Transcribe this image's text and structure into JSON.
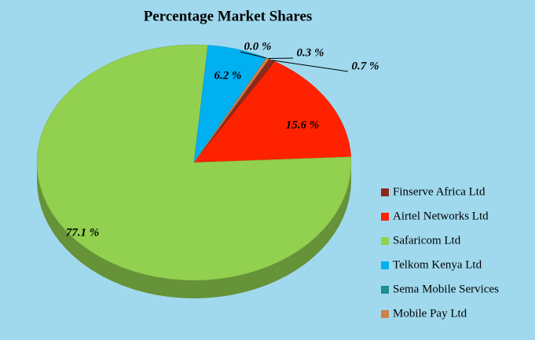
{
  "chart_data": {
    "type": "pie",
    "title": "Percentage Market Shares",
    "categories": [
      "Finserve Africa Ltd",
      "Airtel Networks Ltd",
      "Safaricom Ltd",
      "Telkom Kenya Ltd",
      "Sema Mobile Services",
      "Mobile Pay Ltd"
    ],
    "values": [
      0.7,
      15.6,
      77.1,
      6.2,
      0.0,
      0.3
    ],
    "value_labels": [
      "0.7 %",
      "15.6 %",
      "77.1 %",
      "6.2 %",
      "0.0 %",
      "0.3 %"
    ],
    "colors": [
      "#8b2a1a",
      "#ff2200",
      "#92d050",
      "#00b0f0",
      "#1f8f8f",
      "#d0804a"
    ]
  }
}
